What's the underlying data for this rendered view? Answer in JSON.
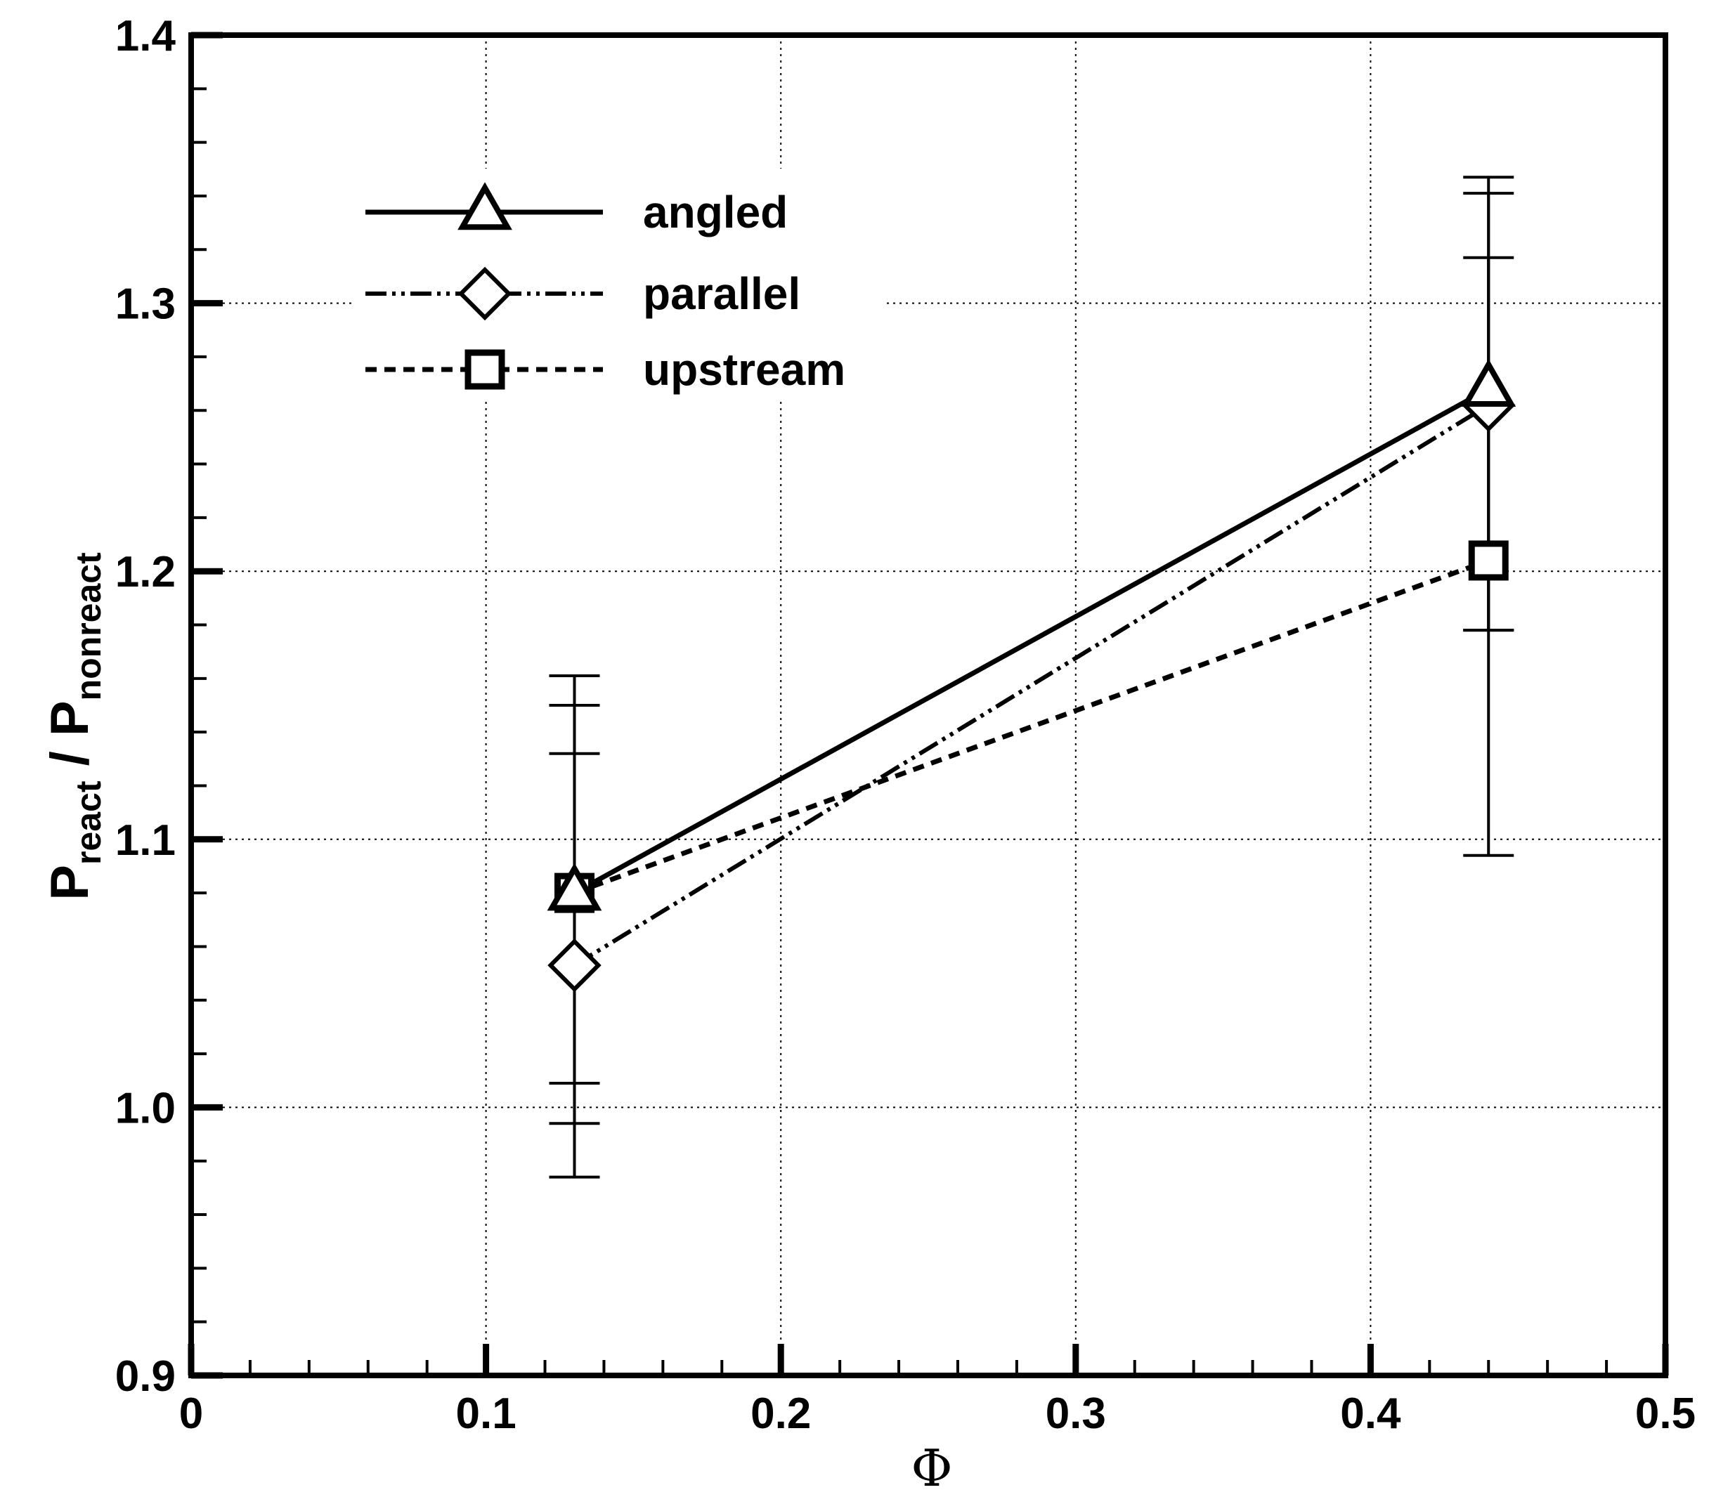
{
  "chart_data": {
    "type": "line",
    "title": "",
    "xlabel": "Φ",
    "ylabel": {
      "main1": "P",
      "sub1": "react",
      "separator": " / ",
      "main2": "P",
      "sub2": "nonreact"
    },
    "xlim": [
      0,
      0.5
    ],
    "ylim": [
      0.9,
      1.4
    ],
    "x_ticks": [
      "0",
      "0.1",
      "0.2",
      "0.3",
      "0.4",
      "0.5"
    ],
    "y_ticks": [
      "0.9",
      "1.0",
      "1.1",
      "1.2",
      "1.3",
      "1.4"
    ],
    "x_tick_values": [
      0,
      0.1,
      0.2,
      0.3,
      0.4,
      0.5
    ],
    "y_tick_values": [
      0.9,
      1.0,
      1.1,
      1.2,
      1.3,
      1.4
    ],
    "grid": true,
    "legend_position": "top-left",
    "series": [
      {
        "name": "angled",
        "marker": "triangle",
        "line_style": "solid",
        "points": [
          {
            "x": 0.13,
            "y": 1.08,
            "err_low": 0.994,
            "err_high": 1.161
          },
          {
            "x": 0.44,
            "y": 1.268,
            "err_low": 1.178,
            "err_high": 1.347
          }
        ]
      },
      {
        "name": "parallel",
        "marker": "diamond",
        "line_style": "dash-dot-dot",
        "points": [
          {
            "x": 0.13,
            "y": 1.053,
            "err_low": 0.974,
            "err_high": 1.132
          },
          {
            "x": 0.44,
            "y": 1.262,
            "err_low": 1.178,
            "err_high": 1.341
          }
        ]
      },
      {
        "name": "upstream",
        "marker": "square",
        "line_style": "dashed",
        "points": [
          {
            "x": 0.13,
            "y": 1.08,
            "err_low": 1.009,
            "err_high": 1.15
          },
          {
            "x": 0.44,
            "y": 1.204,
            "err_low": 1.094,
            "err_high": 1.317
          }
        ]
      }
    ]
  }
}
